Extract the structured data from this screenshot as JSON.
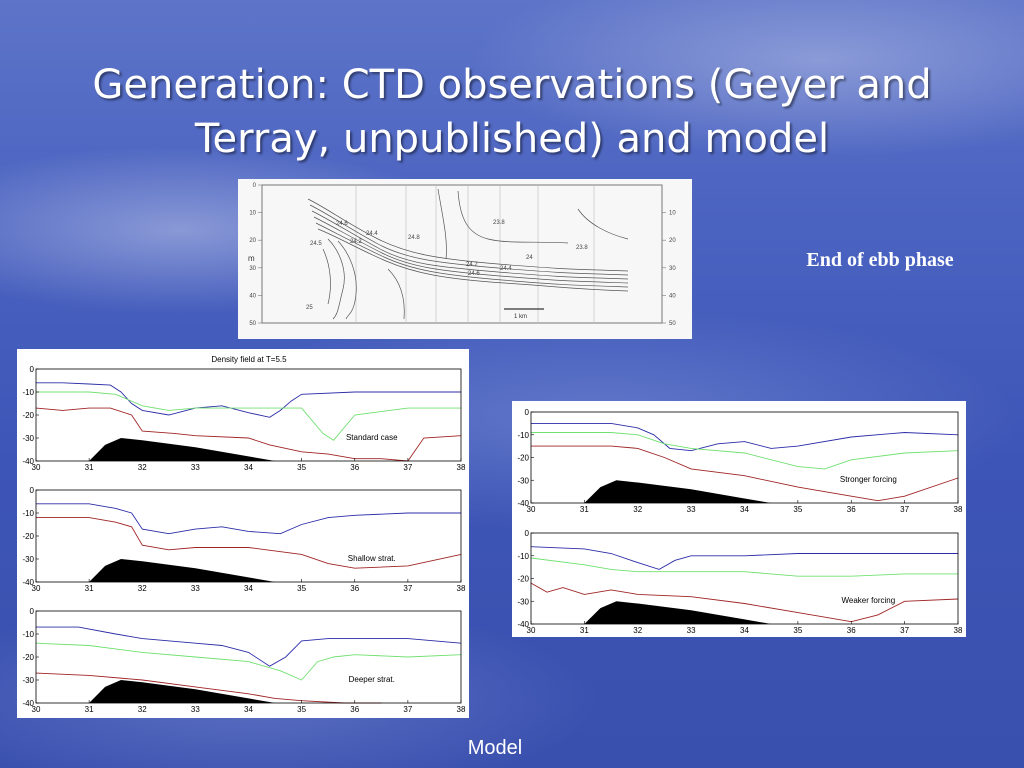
{
  "slide": {
    "title": "Generation: CTD observations (Geyer and Terray, unpublished) and model",
    "side_label": "End of ebb phase",
    "footer_label": "Model"
  },
  "observation": {
    "ylabel": "m",
    "yticks": [
      "0",
      "10",
      "20",
      "30",
      "40",
      "50"
    ],
    "yticks_right": [
      "10",
      "20",
      "30",
      "40",
      "50"
    ],
    "contour_labels": [
      "23.8",
      "23.8",
      "24",
      "24.2",
      "24.4",
      "24.6",
      "24.8",
      "25",
      "24.5",
      "24.2",
      "24.4",
      "24.6"
    ],
    "scale_label": "1 km"
  },
  "chart_data": [
    {
      "type": "line",
      "title": "Density field at T=5.5",
      "annotation": "Standard case",
      "xlim": [
        30,
        38
      ],
      "ylim": [
        -40,
        0
      ],
      "xticks": [
        30,
        31,
        32,
        33,
        34,
        35,
        36,
        37,
        38
      ],
      "yticks": [
        0,
        -10,
        -20,
        -30,
        -40
      ],
      "series": [
        {
          "color": "#2c2ca8",
          "x": [
            30,
            30.5,
            31,
            31.4,
            31.6,
            31.8,
            32,
            32.5,
            33,
            33.5,
            34,
            34.4,
            34.6,
            34.8,
            35,
            36,
            37,
            38
          ],
          "y": [
            -6,
            -6,
            -6.5,
            -7,
            -10,
            -15,
            -18,
            -20,
            -17,
            -16,
            -19,
            -21,
            -18,
            -14,
            -11,
            -10,
            -10,
            -10
          ]
        },
        {
          "color": "#70e070",
          "x": [
            30,
            31,
            31.5,
            32,
            32.5,
            33,
            34,
            35,
            35.4,
            35.6,
            36,
            37,
            38
          ],
          "y": [
            -10,
            -10,
            -11,
            -16,
            -18,
            -17,
            -17,
            -17,
            -28,
            -31,
            -20,
            -17,
            -17
          ]
        },
        {
          "color": "#a02424",
          "x": [
            30,
            30.5,
            31,
            31.4,
            31.8,
            32,
            32.6,
            33,
            34,
            34.4,
            35,
            35.5,
            36,
            36.5,
            37,
            37.3,
            38
          ],
          "y": [
            -17,
            -18,
            -17,
            -17,
            -20,
            -27,
            -28,
            -29,
            -30,
            -33,
            -36,
            -37,
            -39,
            -39,
            -40,
            -30,
            -29
          ]
        }
      ]
    },
    {
      "type": "line",
      "title": "",
      "annotation": "Shallow strat.",
      "xlim": [
        30,
        38
      ],
      "ylim": [
        -40,
        0
      ],
      "xticks": [
        30,
        31,
        32,
        33,
        34,
        35,
        36,
        37,
        38
      ],
      "yticks": [
        0,
        -10,
        -20,
        -30,
        -40
      ],
      "series": [
        {
          "color": "#2c2ca8",
          "x": [
            30,
            31,
            31.5,
            31.8,
            32,
            32.5,
            33,
            33.5,
            34,
            34.6,
            35,
            35.5,
            36,
            37,
            38
          ],
          "y": [
            -6,
            -6,
            -8,
            -10,
            -17,
            -19,
            -17,
            -16,
            -18,
            -19,
            -15,
            -12,
            -11,
            -10,
            -10
          ]
        },
        {
          "color": "#a02424",
          "x": [
            30,
            31,
            31.5,
            31.8,
            32,
            32.5,
            33,
            34,
            35,
            35.5,
            36,
            37,
            38
          ],
          "y": [
            -12,
            -12,
            -14,
            -16,
            -24,
            -26,
            -25,
            -25,
            -28,
            -32,
            -34,
            -33,
            -28
          ]
        }
      ]
    },
    {
      "type": "line",
      "title": "",
      "annotation": "Deeper strat.",
      "xlim": [
        30,
        38
      ],
      "ylim": [
        -40,
        0
      ],
      "xticks": [
        30,
        31,
        32,
        33,
        34,
        35,
        36,
        37,
        38
      ],
      "yticks": [
        0,
        -10,
        -20,
        -30,
        -40
      ],
      "series": [
        {
          "color": "#2c2ca8",
          "x": [
            30,
            30.8,
            31.5,
            32,
            33,
            33.5,
            34,
            34.4,
            34.7,
            35,
            35.5,
            36,
            37,
            38
          ],
          "y": [
            -7,
            -7,
            -10,
            -12,
            -14,
            -15,
            -18,
            -24,
            -20,
            -13,
            -12,
            -12,
            -12,
            -14
          ]
        },
        {
          "color": "#70e070",
          "x": [
            30,
            31,
            32,
            33,
            34,
            34.6,
            35,
            35.3,
            35.6,
            36,
            37,
            38
          ],
          "y": [
            -14,
            -15,
            -18,
            -20,
            -22,
            -26,
            -30,
            -22,
            -20,
            -19,
            -20,
            -19
          ]
        },
        {
          "color": "#a02424",
          "x": [
            30,
            31,
            32,
            33,
            34,
            34.5,
            35,
            35.8,
            36.5
          ],
          "y": [
            -27,
            -28,
            -30,
            -33,
            -36,
            -38,
            -39,
            -40,
            -40
          ]
        }
      ]
    },
    {
      "type": "line",
      "title": "",
      "annotation": "Stronger forcing",
      "xlim": [
        30,
        38
      ],
      "ylim": [
        -40,
        0
      ],
      "xticks": [
        30,
        31,
        32,
        33,
        34,
        35,
        36,
        37,
        38
      ],
      "yticks": [
        0,
        -10,
        -20,
        -30,
        -40
      ],
      "series": [
        {
          "color": "#2c2ca8",
          "x": [
            30,
            31,
            31.5,
            32,
            32.3,
            32.6,
            33,
            33.5,
            34,
            34.5,
            35,
            36,
            37,
            38
          ],
          "y": [
            -5,
            -5,
            -5,
            -7,
            -10,
            -16,
            -17,
            -14,
            -13,
            -16,
            -15,
            -11,
            -9,
            -10
          ]
        },
        {
          "color": "#70e070",
          "x": [
            30,
            31,
            31.5,
            32,
            32.5,
            33,
            34,
            35,
            35.5,
            36,
            37,
            38
          ],
          "y": [
            -9,
            -9,
            -9,
            -10,
            -14,
            -16,
            -18,
            -24,
            -25,
            -21,
            -18,
            -17
          ]
        },
        {
          "color": "#a02424",
          "x": [
            30,
            31,
            31.5,
            32,
            32.5,
            33,
            34,
            35,
            36,
            36.5,
            37,
            38
          ],
          "y": [
            -15,
            -15,
            -15,
            -16,
            -20,
            -25,
            -28,
            -33,
            -37,
            -39,
            -37,
            -29
          ]
        }
      ]
    },
    {
      "type": "line",
      "title": "",
      "annotation": "Weaker forcing",
      "xlim": [
        30,
        38
      ],
      "ylim": [
        -40,
        0
      ],
      "xticks": [
        30,
        31,
        32,
        33,
        34,
        35,
        36,
        37,
        38
      ],
      "yticks": [
        0,
        -10,
        -20,
        -30,
        -40
      ],
      "series": [
        {
          "color": "#2c2ca8",
          "x": [
            30,
            31,
            31.5,
            32,
            32.4,
            32.7,
            33,
            33.5,
            34,
            35,
            36,
            37,
            38
          ],
          "y": [
            -6,
            -7,
            -9,
            -13,
            -16,
            -12,
            -10,
            -10,
            -10,
            -9,
            -9,
            -9,
            -9
          ]
        },
        {
          "color": "#70e070",
          "x": [
            30,
            31,
            31.5,
            32,
            32.5,
            33,
            34,
            35,
            36,
            37,
            38
          ],
          "y": [
            -11,
            -14,
            -16,
            -17,
            -17,
            -17,
            -17,
            -19,
            -19,
            -18,
            -18
          ]
        },
        {
          "color": "#a02424",
          "x": [
            30,
            30.3,
            30.6,
            31,
            31.5,
            32,
            33,
            34,
            35,
            36,
            36.5,
            37,
            38
          ],
          "y": [
            -22,
            -26,
            -24,
            -27,
            -25,
            -27,
            -28,
            -31,
            -35,
            -39,
            -36,
            -30,
            -29
          ]
        }
      ]
    }
  ]
}
